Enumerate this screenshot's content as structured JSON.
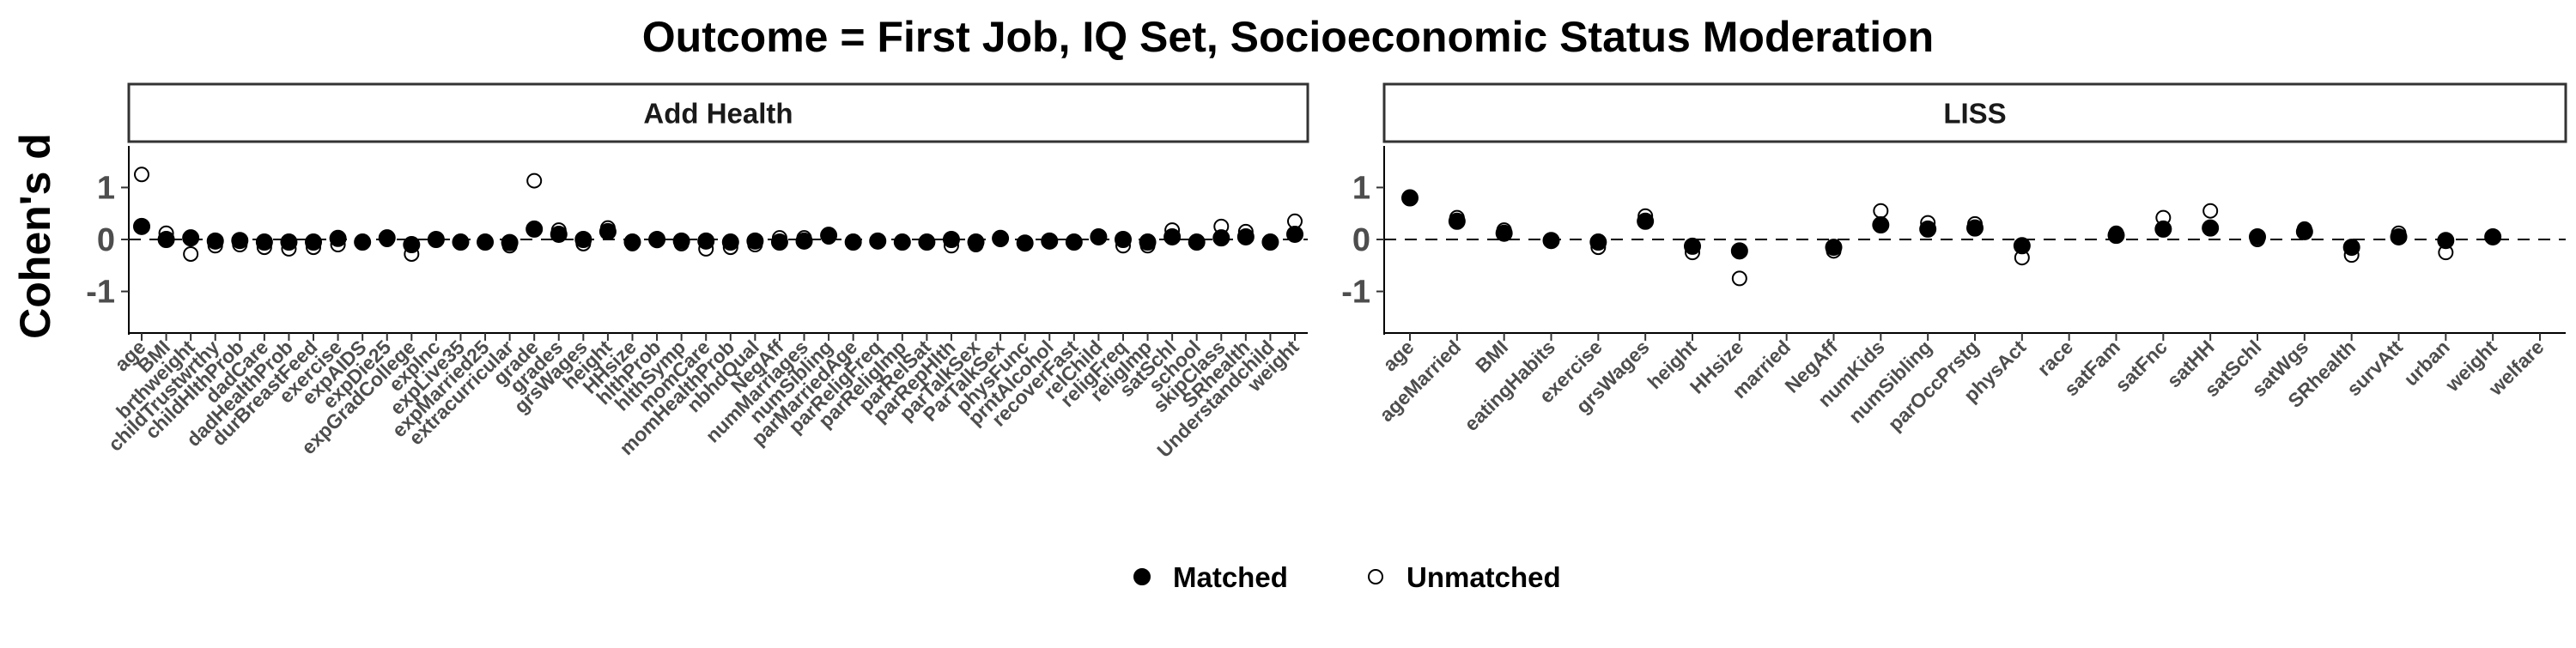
{
  "chart_data": {
    "type": "scatter",
    "title": "Outcome = First Job, IQ Set, Socioeconomic Status Moderation",
    "ylabel": "Cohen's d",
    "xlabel": "",
    "ylim": [
      -1.8,
      1.8
    ],
    "yticks": [
      -1,
      0,
      1
    ],
    "reference_line": 0,
    "legend": {
      "position": "bottom",
      "entries": [
        {
          "name": "Matched",
          "marker": "filled-circle",
          "color": "#000000"
        },
        {
          "name": "Unmatched",
          "marker": "open-circle",
          "color": "#000000"
        }
      ]
    },
    "panels": [
      {
        "label": "Add Health",
        "categories": [
          "age",
          "BMI",
          "brthweight",
          "childTrustwrthy",
          "childHlthProb",
          "dadCare",
          "dadHealthProb",
          "durBreastFeed",
          "exercise",
          "expAIDS",
          "expDie25",
          "expGradCollege",
          "expInc",
          "expLive35",
          "expMarried25",
          "extracurricular",
          "grade",
          "grades",
          "grsWages",
          "height",
          "HHsize",
          "hlthProb",
          "hlthSymp",
          "momCare",
          "momHealthProb",
          "nbhdQual",
          "NegAff",
          "numMarriages",
          "numSibling",
          "parMarriedAge",
          "parReligFreq",
          "parReligImp",
          "parRelSat",
          "parRepHlth",
          "parTalkSex",
          "ParTalkSex",
          "physFunc",
          "prntAlcohol",
          "recoverFast",
          "relChild",
          "religFreq",
          "religImp",
          "satSchl",
          "school",
          "skipClass",
          "SRhealth",
          "Understandchild",
          "weight"
        ],
        "series": [
          {
            "name": "Matched",
            "values": [
              0.25,
              0.0,
              0.03,
              -0.03,
              -0.02,
              -0.05,
              -0.05,
              -0.05,
              0.02,
              -0.05,
              0.03,
              -0.1,
              0.0,
              -0.05,
              -0.05,
              -0.06,
              0.2,
              0.1,
              0.0,
              0.15,
              -0.05,
              0.0,
              -0.03,
              -0.03,
              -0.05,
              -0.03,
              -0.05,
              -0.03,
              0.08,
              -0.05,
              -0.03,
              -0.05,
              -0.05,
              0.0,
              -0.05,
              0.02,
              -0.07,
              -0.03,
              -0.05,
              0.05,
              0.0,
              -0.05,
              0.05,
              -0.05,
              0.03,
              0.05,
              -0.05,
              0.1
            ]
          },
          {
            "name": "Unmatched",
            "values": [
              1.25,
              0.12,
              -0.28,
              -0.12,
              -0.1,
              -0.15,
              -0.18,
              -0.15,
              -0.1,
              -0.05,
              0.0,
              -0.28,
              0.0,
              -0.05,
              -0.05,
              -0.12,
              1.13,
              0.18,
              -0.08,
              0.22,
              -0.08,
              -0.02,
              -0.08,
              -0.18,
              -0.15,
              -0.1,
              0.03,
              0.03,
              0.05,
              -0.05,
              -0.03,
              -0.05,
              -0.05,
              -0.12,
              -0.1,
              0.0,
              -0.07,
              -0.03,
              -0.05,
              0.05,
              -0.12,
              -0.12,
              0.18,
              -0.05,
              0.25,
              0.15,
              -0.05,
              0.35
            ]
          }
        ]
      },
      {
        "label": "LISS",
        "categories": [
          "age",
          "ageMarried",
          "BMI",
          "eatingHabits",
          "exercise",
          "grsWages",
          "height",
          "HHsize",
          "married",
          "NegAff",
          "numKids",
          "numSibling",
          "parOccPrstg",
          "physAct",
          "race",
          "satFam",
          "satFnc",
          "satHH",
          "satSchl",
          "satWgs",
          "SRhealth",
          "survAtt",
          "urban",
          "weight",
          "welfare"
        ],
        "series": [
          {
            "name": "Matched",
            "values": [
              0.8,
              0.35,
              0.12,
              -0.02,
              -0.05,
              0.35,
              -0.13,
              -0.22,
              null,
              -0.15,
              0.28,
              0.2,
              0.22,
              -0.12,
              null,
              0.08,
              0.2,
              0.22,
              0.05,
              0.15,
              -0.15,
              0.05,
              -0.02,
              0.05,
              null
            ]
          },
          {
            "name": "Unmatched",
            "values": [
              0.8,
              0.42,
              0.18,
              -0.02,
              -0.15,
              0.45,
              -0.25,
              -0.75,
              null,
              -0.22,
              0.55,
              0.32,
              0.3,
              -0.35,
              null,
              0.12,
              0.42,
              0.55,
              0.0,
              0.2,
              -0.3,
              0.12,
              -0.25,
              0.05,
              null
            ]
          }
        ]
      }
    ]
  }
}
